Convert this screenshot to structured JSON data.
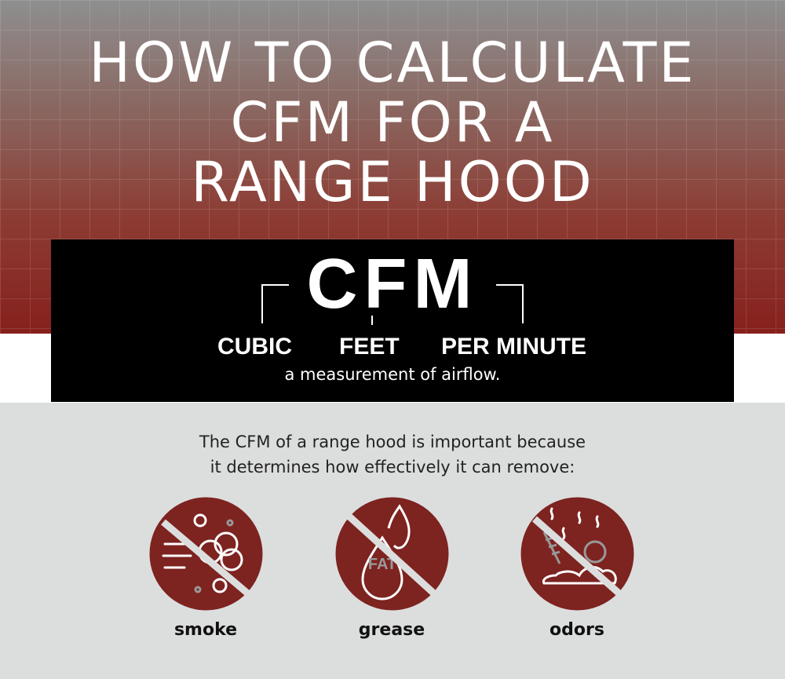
{
  "title": {
    "line1": "HOW TO CALCULATE",
    "line2": "CFM FOR A",
    "line3": "RANGE HOOD"
  },
  "definition": {
    "acronym": "CFM",
    "word1": "CUBIC",
    "word2": "FEET",
    "word3": "PER MINUTE",
    "subtitle": "a measurement of airflow."
  },
  "intro": {
    "line1": "The CFM of a range hood is important because",
    "line2": "it determines how effectively it can remove:"
  },
  "items": [
    {
      "label": "smoke",
      "icon": "no-smoke-icon"
    },
    {
      "label": "grease",
      "icon": "no-grease-icon",
      "icon_text": "FAT"
    },
    {
      "label": "odors",
      "icon": "no-odors-icon"
    }
  ],
  "colors": {
    "accent": "#7d2320",
    "box": "#000000",
    "background": "#dcdedd"
  }
}
